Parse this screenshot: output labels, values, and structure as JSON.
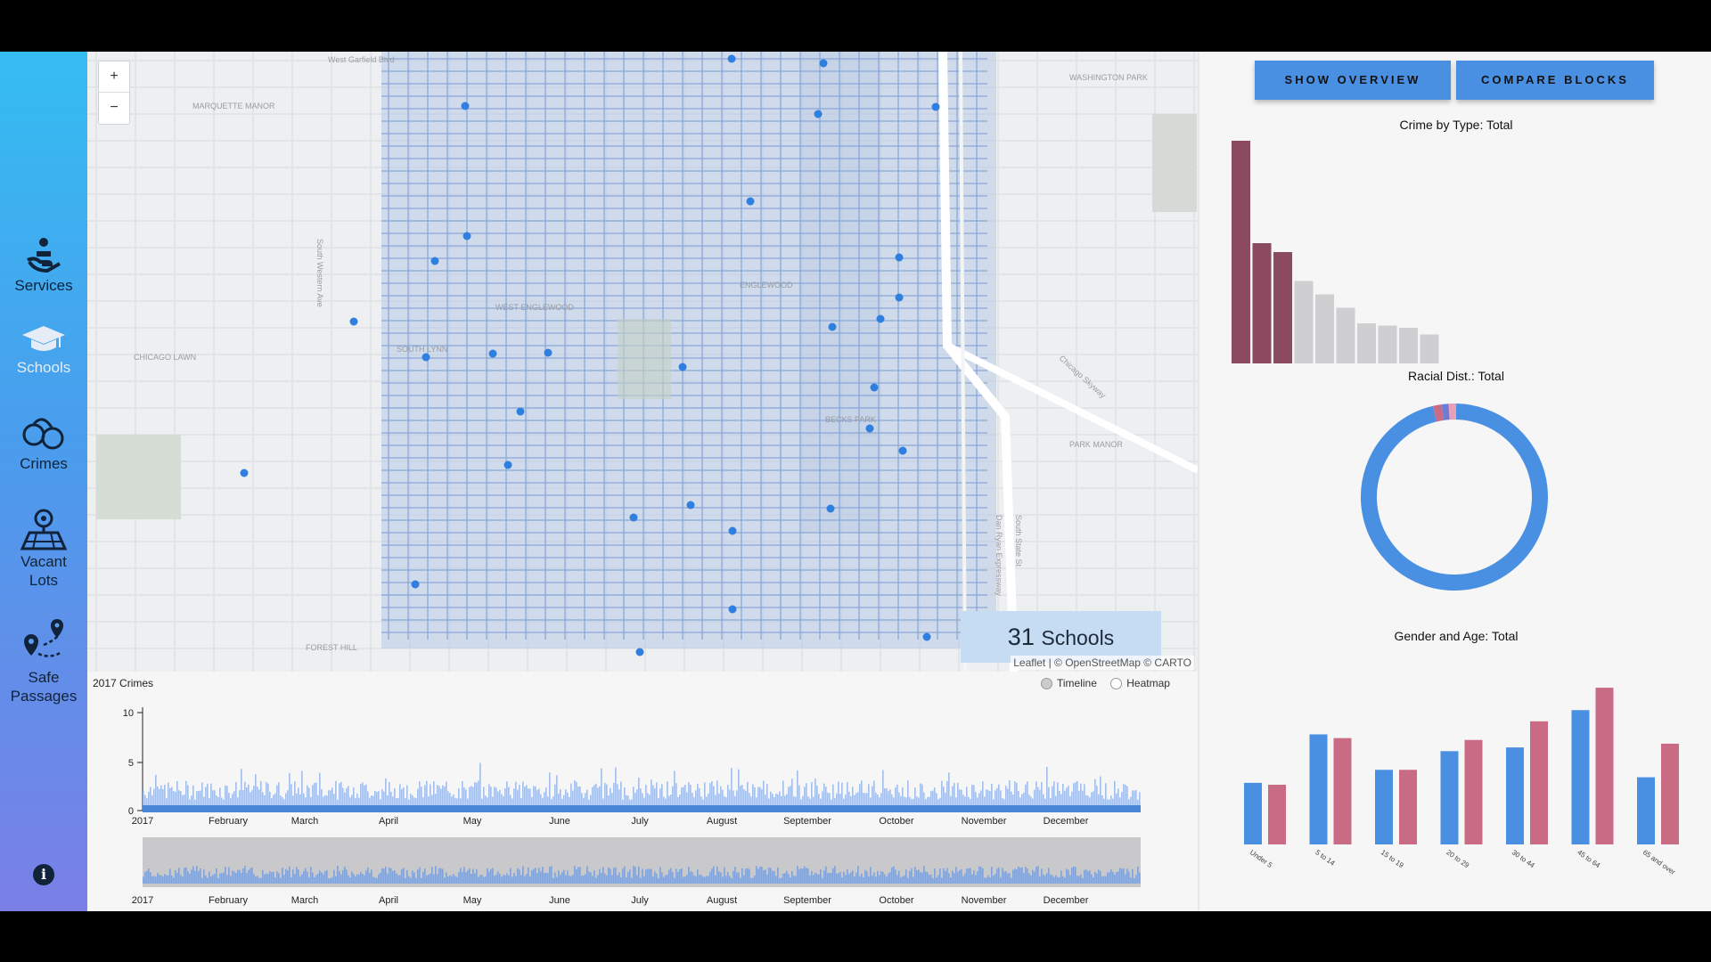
{
  "sidebar": {
    "items": [
      {
        "label": "Services",
        "icon": "charity-icon"
      },
      {
        "label": "Schools",
        "icon": "graduation-cap-icon"
      },
      {
        "label": "Crimes",
        "icon": "handcuffs-icon"
      },
      {
        "label": "Vacant\nLots",
        "icon": "vacant-lot-map-icon"
      },
      {
        "label": "Safe\nPassages",
        "icon": "route-pins-icon"
      }
    ],
    "info_icon": "i"
  },
  "map": {
    "zoom_in": "+",
    "zoom_out": "−",
    "place_labels": [
      "West Garfield Blvd",
      "MARQUETTE MANOR",
      "WASHINGTON PARK",
      "ENGLEWOOD",
      "WEST ENGLEWOOD",
      "CHICAGO LAWN",
      "SOUTH LYNN",
      "BECKS PARK",
      "PARK MANOR",
      "FOREST HILL",
      "Dan Ryan Expressway",
      "South Western Ave",
      "South State St",
      "Chicago Skyway"
    ],
    "school_count": "31",
    "school_count_unit": "Schools",
    "attribution": "Leaflet | © OpenStreetMap © CARTO",
    "point_color": "#2f7fe0"
  },
  "timeline": {
    "title": "2017 Crimes",
    "mode_options": [
      "Timeline",
      "Heatmap"
    ],
    "selected_mode": "Timeline",
    "y_ticks": [
      "10",
      "5",
      "0"
    ],
    "months": [
      "2017",
      "February",
      "March",
      "April",
      "May",
      "June",
      "July",
      "August",
      "September",
      "October",
      "November",
      "December"
    ]
  },
  "right_panel": {
    "buttons": [
      "SHOW OVERVIEW",
      "COMPARE BLOCKS"
    ]
  },
  "chart_data": [
    {
      "type": "bar",
      "title": "Crime by Type: Total",
      "values": [
        100,
        54,
        50,
        37,
        31,
        25,
        18,
        17,
        16,
        13
      ],
      "colors": [
        "#8c4a60",
        "#8c4a60",
        "#8c4a60",
        "#cfcfd1",
        "#cfcfd1",
        "#cfcfd1",
        "#cfcfd1",
        "#cfcfd1",
        "#cfcfd1",
        "#cfcfd1"
      ],
      "ylim": [
        0,
        100
      ]
    },
    {
      "type": "pie",
      "title": "Racial Dist.: Total",
      "values": [
        96,
        1.5,
        1.2,
        1.3
      ],
      "colors": [
        "#4a90e2",
        "#c96b85",
        "#6c7bd6",
        "#e7a0b8"
      ]
    },
    {
      "type": "bar",
      "title": "Gender and Age: Total",
      "categories": [
        "Under 5",
        "5 to 14",
        "15 to 19",
        "20 to 29",
        "30 to 44",
        "45 to 64",
        "65 and over"
      ],
      "series": [
        {
          "values": [
            33,
            59,
            40,
            50,
            52,
            72,
            36
          ],
          "color": "#4a90e2"
        },
        {
          "values": [
            32,
            57,
            40,
            56,
            66,
            84,
            54
          ],
          "color": "#c96b85"
        }
      ],
      "ylim": [
        0,
        85
      ]
    }
  ]
}
